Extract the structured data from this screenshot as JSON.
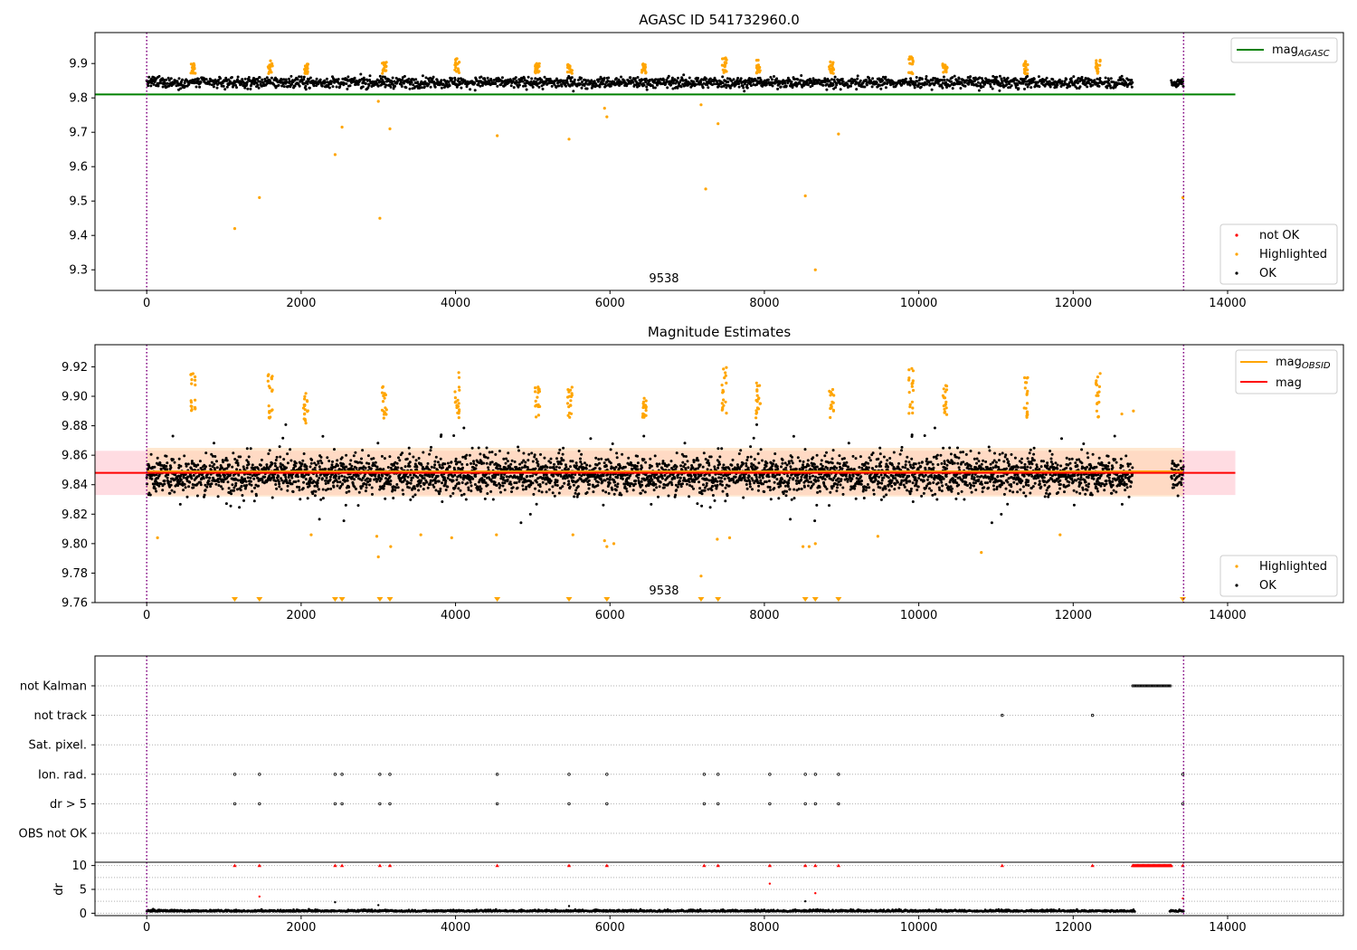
{
  "colors": {
    "ok": "#000000",
    "highlighted": "#ffa500",
    "not_ok": "#ff0000",
    "mag_agasc": "#008000",
    "mag_obsid": "#ffa500",
    "mag": "#ff0000",
    "obsid_boundary": "#800080",
    "band_global": "#ffc0cb",
    "band_obsid": "#ffd8b0",
    "grid": "#b0b0b0"
  },
  "chart_data": [
    {
      "type": "scatter",
      "title": "AGASC ID 541732960.0",
      "xlim": [
        -670,
        15500
      ],
      "ylim": [
        9.24,
        9.99
      ],
      "x_ticks": [
        0,
        2000,
        4000,
        6000,
        8000,
        10000,
        12000,
        14000
      ],
      "y_ticks": [
        9.3,
        9.4,
        9.5,
        9.6,
        9.7,
        9.8,
        9.9
      ],
      "x_tick_labels": [
        "0",
        "2000",
        "4000",
        "6000",
        "8000",
        "10000",
        "12000",
        "14000"
      ],
      "y_tick_labels": [
        "9.3",
        "9.4",
        "9.5",
        "9.6",
        "9.7",
        "9.8",
        "9.9"
      ],
      "obsid_label": "9538",
      "obsid_label_x": 6700,
      "obsid_boundaries": [
        0,
        13430
      ],
      "lines": [
        {
          "name": "magAGASC",
          "y": 9.81,
          "x_range": [
            -670,
            14100
          ]
        }
      ],
      "legend_upper": [
        {
          "label": "mag",
          "sub": "AGASC",
          "color_key": "mag_agasc"
        }
      ],
      "legend_lower": [
        {
          "label": "not OK",
          "color_key": "not_ok"
        },
        {
          "label": "Highlighted",
          "color_key": "highlighted"
        },
        {
          "label": "OK",
          "color_key": "ok"
        }
      ],
      "ok_band": {
        "center": 9.845,
        "spread": 0.016,
        "x_range": [
          0,
          12770
        ],
        "x_range_b": [
          13270,
          13430
        ]
      },
      "highlighted_clusters": [
        {
          "x": 600,
          "y_range": [
            9.87,
            9.915
          ]
        },
        {
          "x": 1600,
          "y_range": [
            9.87,
            9.91
          ]
        },
        {
          "x": 2060,
          "y_range": [
            9.87,
            9.9
          ]
        },
        {
          "x": 3080,
          "y_range": [
            9.87,
            9.905
          ]
        },
        {
          "x": 4020,
          "y_range": [
            9.87,
            9.915
          ]
        },
        {
          "x": 5060,
          "y_range": [
            9.87,
            9.9
          ]
        },
        {
          "x": 5480,
          "y_range": [
            9.87,
            9.905
          ]
        },
        {
          "x": 6440,
          "y_range": [
            9.87,
            9.9
          ]
        },
        {
          "x": 7480,
          "y_range": [
            9.87,
            9.92
          ]
        },
        {
          "x": 7920,
          "y_range": [
            9.87,
            9.91
          ]
        },
        {
          "x": 8870,
          "y_range": [
            9.87,
            9.905
          ]
        },
        {
          "x": 9900,
          "y_range": [
            9.87,
            9.92
          ]
        },
        {
          "x": 10340,
          "y_range": [
            9.87,
            9.905
          ]
        },
        {
          "x": 11390,
          "y_range": [
            9.87,
            9.91
          ]
        },
        {
          "x": 12320,
          "y_range": [
            9.87,
            9.91
          ]
        }
      ],
      "highlighted_outliers": [
        {
          "x": 1140,
          "y": 9.42
        },
        {
          "x": 1460,
          "y": 9.51
        },
        {
          "x": 2440,
          "y": 9.635
        },
        {
          "x": 2530,
          "y": 9.715
        },
        {
          "x": 3020,
          "y": 9.45
        },
        {
          "x": 3150,
          "y": 9.71
        },
        {
          "x": 4540,
          "y": 9.69
        },
        {
          "x": 5470,
          "y": 9.68
        },
        {
          "x": 5960,
          "y": 9.745
        },
        {
          "x": 7180,
          "y": 9.78
        },
        {
          "x": 7240,
          "y": 9.535
        },
        {
          "x": 7400,
          "y": 9.725
        },
        {
          "x": 8530,
          "y": 9.515
        },
        {
          "x": 8660,
          "y": 9.3
        },
        {
          "x": 8960,
          "y": 9.695
        },
        {
          "x": 13420,
          "y": 9.51
        },
        {
          "x": 3000,
          "y": 9.79
        },
        {
          "x": 5930,
          "y": 9.77
        }
      ]
    },
    {
      "type": "scatter",
      "title": "Magnitude Estimates",
      "xlim": [
        -670,
        15500
      ],
      "ylim": [
        9.76,
        9.935
      ],
      "x_ticks": [
        0,
        2000,
        4000,
        6000,
        8000,
        10000,
        12000,
        14000
      ],
      "y_ticks": [
        9.76,
        9.78,
        9.8,
        9.82,
        9.84,
        9.86,
        9.88,
        9.9,
        9.92
      ],
      "x_tick_labels": [
        "0",
        "2000",
        "4000",
        "6000",
        "8000",
        "10000",
        "12000",
        "14000"
      ],
      "y_tick_labels": [
        "9.76",
        "9.78",
        "9.80",
        "9.82",
        "9.84",
        "9.86",
        "9.88",
        "9.90",
        "9.92"
      ],
      "obsid_label": "9538",
      "obsid_label_x": 6700,
      "obsid_boundaries": [
        0,
        13430
      ],
      "lines": [
        {
          "name": "mag",
          "y": 9.848,
          "x_range": [
            -670,
            14100
          ]
        },
        {
          "name": "magOBSID",
          "y": 9.849,
          "x_range": [
            0,
            13430
          ]
        }
      ],
      "bands": [
        {
          "name": "global",
          "y_range": [
            9.833,
            9.863
          ],
          "x_range": [
            -670,
            14100
          ]
        },
        {
          "name": "obsid",
          "y_range": [
            9.832,
            9.865
          ],
          "x_range": [
            0,
            13430
          ]
        }
      ],
      "legend_upper": [
        {
          "label": "mag",
          "sub": "OBSID",
          "color_key": "mag_obsid"
        },
        {
          "label": "mag",
          "sub": "",
          "color_key": "mag"
        }
      ],
      "legend_lower": [
        {
          "label": "Highlighted",
          "color_key": "highlighted"
        },
        {
          "label": "OK",
          "color_key": "ok"
        }
      ],
      "ok_band": {
        "center": 9.847,
        "spread": 0.012,
        "x_range": [
          0,
          12770
        ],
        "x_range_b": [
          13270,
          13430
        ]
      },
      "highlighted_clusters": [
        {
          "x": 600,
          "y_range": [
            9.89,
            9.92
          ]
        },
        {
          "x": 1600,
          "y_range": [
            9.885,
            9.915
          ]
        },
        {
          "x": 2060,
          "y_range": [
            9.88,
            9.903
          ]
        },
        {
          "x": 3080,
          "y_range": [
            9.885,
            9.908
          ]
        },
        {
          "x": 4020,
          "y_range": [
            9.885,
            9.918
          ]
        },
        {
          "x": 5060,
          "y_range": [
            9.883,
            9.908
          ]
        },
        {
          "x": 5480,
          "y_range": [
            9.885,
            9.91
          ]
        },
        {
          "x": 6440,
          "y_range": [
            9.885,
            9.9
          ]
        },
        {
          "x": 7480,
          "y_range": [
            9.885,
            9.92
          ]
        },
        {
          "x": 7920,
          "y_range": [
            9.885,
            9.912
          ]
        },
        {
          "x": 8870,
          "y_range": [
            9.885,
            9.905
          ]
        },
        {
          "x": 9900,
          "y_range": [
            9.885,
            9.922
          ]
        },
        {
          "x": 10340,
          "y_range": [
            9.885,
            9.91
          ]
        },
        {
          "x": 11390,
          "y_range": [
            9.885,
            9.913
          ]
        },
        {
          "x": 12320,
          "y_range": [
            9.885,
            9.916
          ]
        }
      ],
      "highlighted_outliers": [
        {
          "x": 140,
          "y": 9.804
        },
        {
          "x": 2130,
          "y": 9.806
        },
        {
          "x": 2980,
          "y": 9.805
        },
        {
          "x": 3000,
          "y": 9.791
        },
        {
          "x": 3160,
          "y": 9.798
        },
        {
          "x": 3550,
          "y": 9.806
        },
        {
          "x": 3950,
          "y": 9.804
        },
        {
          "x": 4530,
          "y": 9.806
        },
        {
          "x": 5520,
          "y": 9.806
        },
        {
          "x": 5930,
          "y": 9.802
        },
        {
          "x": 5960,
          "y": 9.798
        },
        {
          "x": 6050,
          "y": 9.8
        },
        {
          "x": 7180,
          "y": 9.778
        },
        {
          "x": 7390,
          "y": 9.803
        },
        {
          "x": 7550,
          "y": 9.804
        },
        {
          "x": 8500,
          "y": 9.798
        },
        {
          "x": 8580,
          "y": 9.798
        },
        {
          "x": 8660,
          "y": 9.8
        },
        {
          "x": 9470,
          "y": 9.805
        },
        {
          "x": 10810,
          "y": 9.794
        },
        {
          "x": 11830,
          "y": 9.806
        },
        {
          "x": 12630,
          "y": 9.888
        },
        {
          "x": 12780,
          "y": 9.89
        }
      ],
      "offscale_low_x": [
        1140,
        1460,
        2440,
        2530,
        3020,
        3150,
        4540,
        5470,
        5960,
        7180,
        7400,
        8530,
        8660,
        8960,
        13420
      ]
    },
    {
      "type": "scatter",
      "title": "",
      "xlim": [
        -670,
        15500
      ],
      "flag_rows": [
        "not Kalman",
        "not track",
        "Sat. pixel.",
        "Ion. rad.",
        "dr > 5",
        "OBS not OK"
      ],
      "flags": {
        "not Kalman": {
          "ranges": [
            [
              12770,
              13270
            ]
          ],
          "points": []
        },
        "not track": {
          "ranges": [],
          "points": [
            11080,
            12250
          ]
        },
        "Sat. pixel.": {
          "ranges": [],
          "points": []
        },
        "Ion. rad.": {
          "ranges": [],
          "points": [
            1140,
            1460,
            2440,
            2530,
            3020,
            3150,
            4540,
            5470,
            5960,
            7220,
            7400,
            8070,
            8530,
            8660,
            8960,
            13420
          ]
        },
        "dr > 5": {
          "ranges": [],
          "points": [
            1140,
            1460,
            2440,
            2530,
            3020,
            3150,
            4540,
            5470,
            5960,
            7220,
            7400,
            8070,
            8530,
            8660,
            8960,
            13420
          ]
        },
        "OBS not OK": {
          "ranges": [],
          "points": []
        }
      },
      "dr": {
        "ylabel": "dr",
        "ylim": [
          -0.5,
          10.5
        ],
        "y_ticks": [
          0,
          5,
          10
        ],
        "y_tick_labels": [
          "0",
          "5",
          "10"
        ],
        "clip": 10,
        "clipped_points": [
          1140,
          1460,
          2440,
          2530,
          3020,
          3150,
          4540,
          5470,
          5960,
          7220,
          7400,
          8070,
          8530,
          8660,
          8960,
          11080,
          12250,
          13420
        ],
        "clipped_range": [
          12770,
          13270
        ],
        "mid_points": [
          {
            "x": 1460,
            "y": 3.5,
            "color_key": "not_ok"
          },
          {
            "x": 8070,
            "y": 6.2,
            "color_key": "not_ok"
          },
          {
            "x": 8660,
            "y": 4.2,
            "color_key": "not_ok"
          },
          {
            "x": 13420,
            "y": 3.1,
            "color_key": "not_ok"
          },
          {
            "x": 2440,
            "y": 2.3,
            "color_key": "ok"
          },
          {
            "x": 8530,
            "y": 2.5,
            "color_key": "ok"
          },
          {
            "x": 3000,
            "y": 1.7,
            "color_key": "ok"
          },
          {
            "x": 5470,
            "y": 1.5,
            "color_key": "ok"
          }
        ],
        "baseline": {
          "center": 0.35,
          "spread": 0.35,
          "x_range": [
            0,
            12800
          ],
          "x_range_b": [
            13250,
            13430
          ]
        }
      }
    }
  ]
}
